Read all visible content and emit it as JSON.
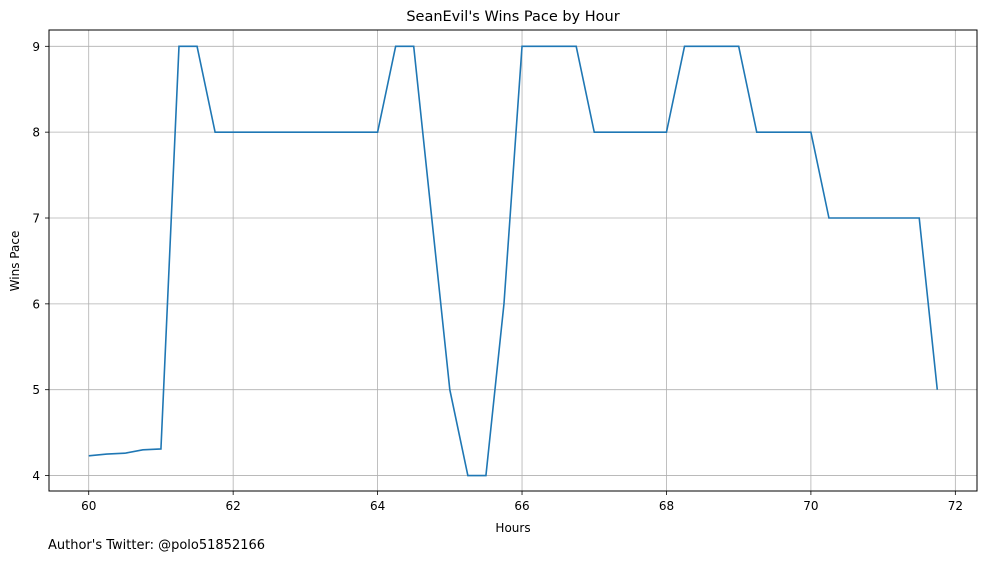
{
  "chart_data": {
    "type": "line",
    "title": "SeanEvil's Wins Pace by Hour",
    "xlabel": "Hours",
    "ylabel": "Wins Pace",
    "xlim": [
      59.45,
      72.3
    ],
    "ylim": [
      3.82,
      9.19
    ],
    "xticks": [
      60,
      62,
      64,
      66,
      68,
      70,
      72
    ],
    "yticks": [
      4,
      5,
      6,
      7,
      8,
      9
    ],
    "grid": true,
    "series": [
      {
        "color": "#1f77b4",
        "x": [
          60.0,
          60.25,
          60.5,
          60.75,
          61.0,
          61.25,
          61.5,
          61.75,
          62.0,
          62.25,
          62.5,
          62.75,
          63.0,
          63.25,
          63.5,
          63.75,
          64.0,
          64.25,
          64.5,
          64.75,
          65.0,
          65.25,
          65.5,
          65.75,
          66.0,
          66.25,
          66.5,
          66.75,
          67.0,
          67.25,
          67.5,
          67.75,
          68.0,
          68.25,
          68.5,
          68.75,
          69.0,
          69.25,
          69.5,
          69.75,
          70.0,
          70.25,
          70.5,
          70.75,
          71.0,
          71.25,
          71.5,
          71.75
        ],
        "y": [
          4.23,
          4.25,
          4.26,
          4.3,
          4.31,
          9,
          9,
          8,
          8,
          8,
          8,
          8,
          8,
          8,
          8,
          8,
          8,
          9,
          9,
          7,
          5,
          4,
          4,
          6,
          9,
          9,
          9,
          9,
          8,
          8,
          8,
          8,
          8,
          9,
          9,
          9,
          9,
          8,
          8,
          8,
          8,
          7,
          7,
          7,
          7,
          7,
          7,
          5
        ]
      }
    ]
  },
  "footer": "Author's Twitter: @polo51852166"
}
